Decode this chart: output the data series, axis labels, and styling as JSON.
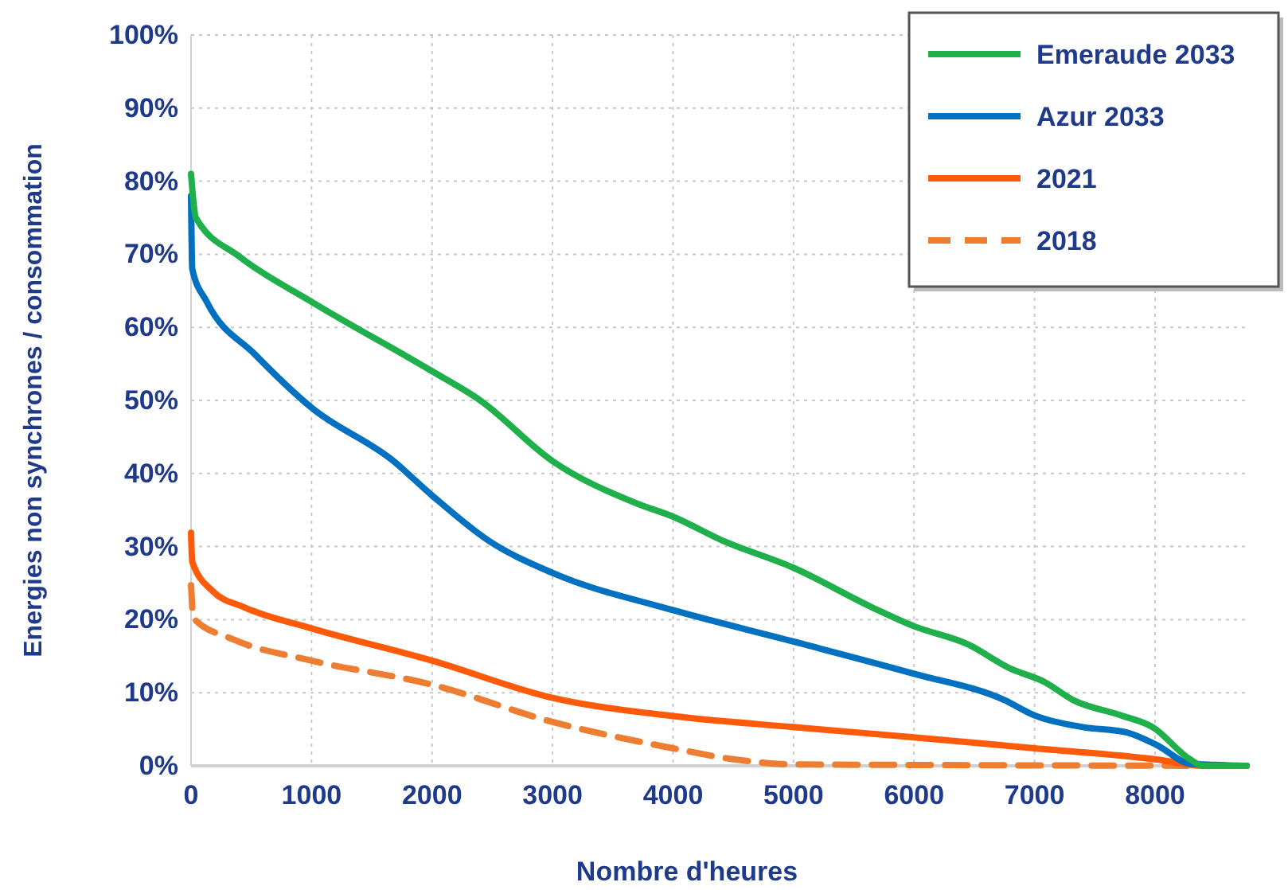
{
  "chart_data": {
    "type": "line",
    "xlabel": "Nombre d'heures",
    "ylabel": "Energies non synchrones / consommation",
    "xlim": [
      0,
      8760
    ],
    "xticks": [
      0,
      1000,
      2000,
      3000,
      4000,
      5000,
      6000,
      7000,
      8000
    ],
    "ylim": [
      0,
      100
    ],
    "yticks": [
      {
        "value": 0,
        "label": "0%"
      },
      {
        "value": 10,
        "label": "10%"
      },
      {
        "value": 20,
        "label": "20%"
      },
      {
        "value": 30,
        "label": "30%"
      },
      {
        "value": 40,
        "label": "40%"
      },
      {
        "value": 50,
        "label": "50%"
      },
      {
        "value": 60,
        "label": "60%"
      },
      {
        "value": 70,
        "label": "70%"
      },
      {
        "value": 80,
        "label": "80%"
      },
      {
        "value": 90,
        "label": "90%"
      },
      {
        "value": 100,
        "label": "100%"
      }
    ],
    "grid": true,
    "legend": "top right",
    "marker": "none",
    "series": [
      {
        "name": "Emeraude 2033",
        "color": "#1fb04b",
        "line_style": "solid",
        "x": [
          0,
          40,
          400,
          1000,
          2000,
          2400,
          3000,
          3700,
          4000,
          4400,
          5000,
          5650,
          6000,
          6450,
          6800,
          7080,
          7320,
          7720,
          7980,
          8290,
          8400,
          8760
        ],
        "values": [
          81,
          75,
          69.7,
          63.5,
          54,
          50,
          41.7,
          35.9,
          34.1,
          30.9,
          27.1,
          21.7,
          19.1,
          16.6,
          13.3,
          11.5,
          9,
          6.9,
          5.3,
          0.9,
          0,
          0
        ]
      },
      {
        "name": "Azur 2033",
        "color": "#0070c0",
        "line_style": "solid",
        "x": [
          0,
          10,
          130,
          530,
          1000,
          1680,
          2000,
          2470,
          3000,
          4000,
          5000,
          6000,
          6750,
          7000,
          7400,
          7760,
          8020,
          8290,
          8760
        ],
        "values": [
          78,
          68,
          63.5,
          56.3,
          49,
          41.7,
          37,
          30.8,
          26.4,
          21.3,
          17,
          12.6,
          9,
          6.9,
          5.3,
          4.6,
          2.8,
          0.3,
          0
        ]
      },
      {
        "name": "2021",
        "color": "#ff5a0a",
        "line_style": "solid",
        "x": [
          0,
          10,
          180,
          440,
          1000,
          2000,
          3000,
          4000,
          5000,
          6000,
          7000,
          8000,
          8400,
          8760
        ],
        "values": [
          31.9,
          27.9,
          23.9,
          21.7,
          18.8,
          14.4,
          9.3,
          6.8,
          5.3,
          3.9,
          2.4,
          0.9,
          0,
          0
        ]
      },
      {
        "name": "2018",
        "color": "#ed7d31",
        "line_style": "dashed",
        "x": [
          0,
          20,
          350,
          1000,
          2000,
          3000,
          4000,
          4500,
          5000,
          8760
        ],
        "values": [
          24.7,
          20.2,
          17.3,
          14.4,
          11.1,
          6,
          2.4,
          0.9,
          0.2,
          0
        ]
      }
    ]
  }
}
